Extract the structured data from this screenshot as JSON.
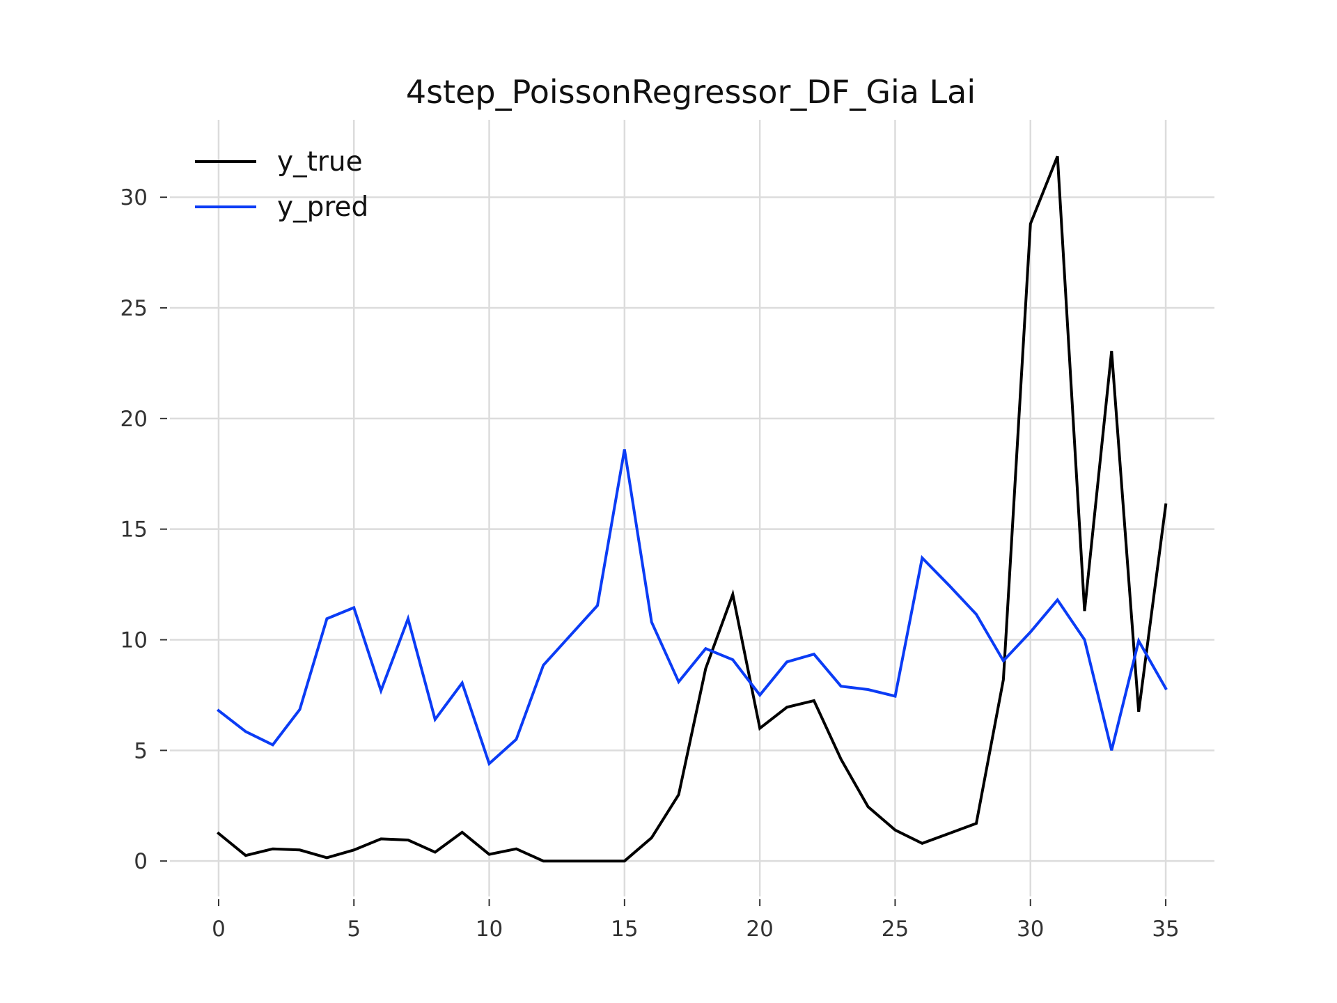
{
  "chart_data": {
    "type": "line",
    "title": "4step_PoissonRegressor_DF_Gia Lai",
    "xlabel": "",
    "ylabel": "",
    "xlim": [
      -1.8,
      36.8
    ],
    "ylim": [
      -1.6,
      33.5
    ],
    "xticks": [
      0,
      5,
      10,
      15,
      20,
      25,
      30,
      35
    ],
    "yticks": [
      0,
      5,
      10,
      15,
      20,
      25,
      30
    ],
    "grid": true,
    "legend_position": "top-left",
    "x": [
      0,
      1,
      2,
      3,
      4,
      5,
      6,
      7,
      8,
      9,
      10,
      11,
      12,
      13,
      14,
      15,
      16,
      17,
      18,
      19,
      20,
      21,
      22,
      23,
      24,
      25,
      26,
      27,
      28,
      29,
      30,
      31,
      32,
      33,
      34,
      35
    ],
    "series": [
      {
        "name": "y_true",
        "color": "#000000",
        "values": [
          1.25,
          0.25,
          0.55,
          0.5,
          0.15,
          0.5,
          1.0,
          0.95,
          0.4,
          1.3,
          0.3,
          0.55,
          0.0,
          0.0,
          0.0,
          0.0,
          1.05,
          3.0,
          8.7,
          12.05,
          6.0,
          6.95,
          7.25,
          4.6,
          2.45,
          1.4,
          0.8,
          1.25,
          1.7,
          8.2,
          28.8,
          31.85,
          11.3,
          23.05,
          6.75,
          16.1
        ]
      },
      {
        "name": "y_pred",
        "color": "#0b3cf5",
        "values": [
          6.8,
          5.85,
          5.25,
          6.85,
          10.95,
          11.45,
          7.7,
          10.95,
          6.4,
          8.05,
          4.4,
          5.5,
          8.85,
          10.2,
          11.55,
          18.6,
          10.8,
          8.1,
          9.6,
          9.1,
          7.5,
          9.0,
          9.35,
          7.9,
          7.75,
          7.45,
          13.7,
          12.45,
          11.15,
          9.05,
          10.35,
          11.8,
          10.0,
          5.0,
          9.95,
          7.8
        ]
      }
    ]
  }
}
